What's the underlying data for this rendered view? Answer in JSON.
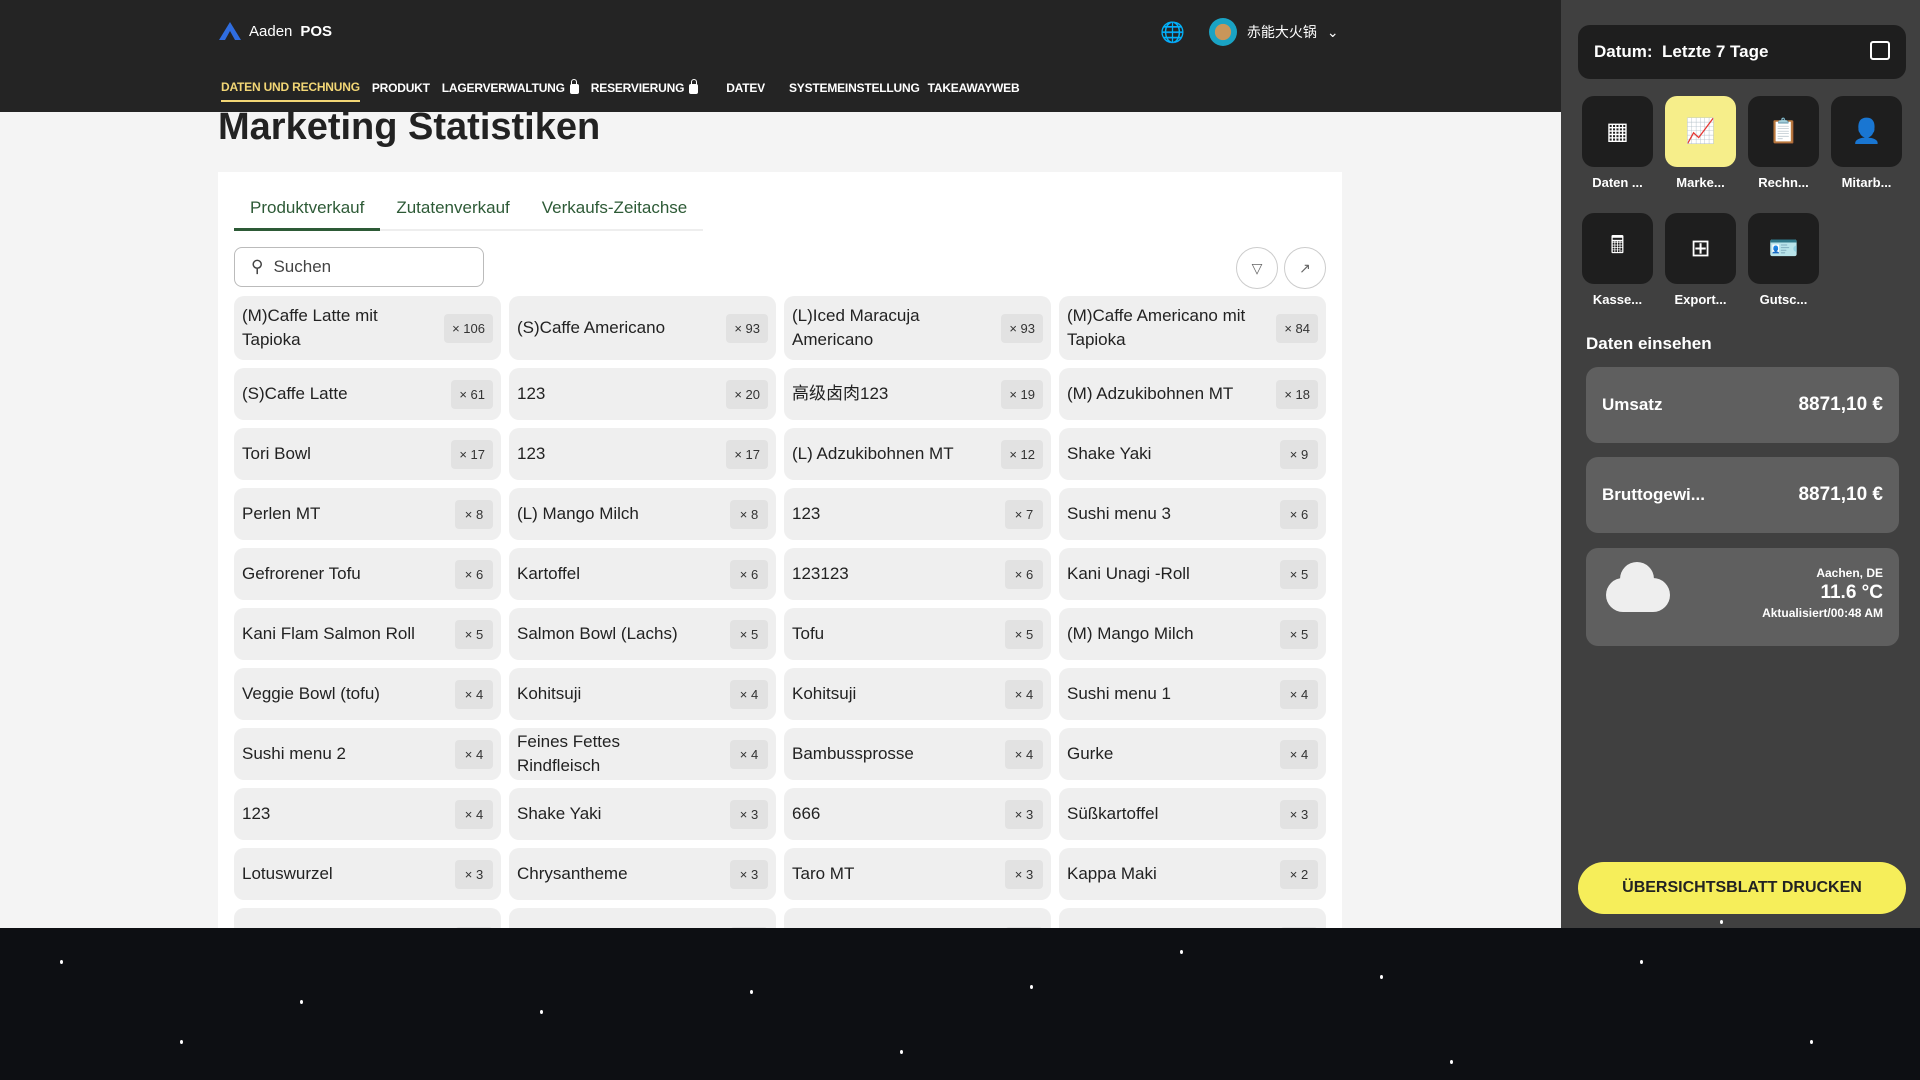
{
  "header": {
    "logo_prefix": "Aaden",
    "logo_bold": "POS",
    "user_name": "赤能大火锅",
    "nav": [
      "DATEN UND RECHNUNG",
      "PRODUKT",
      "LAGERVERWALTUNG",
      "RESERVIERUNG",
      "DATEV",
      "SYSTEMEINSTELLUNG",
      "TAKEAWAYWEB"
    ]
  },
  "page": {
    "title": "Marketing Statistiken",
    "tabs": [
      "Produktverkauf",
      "Zutatenverkauf",
      "Verkaufs-Zeitachse"
    ],
    "search_placeholder": "Suchen",
    "items": [
      [
        "(M)Caffe Latte mit Tapioka",
        "× 106"
      ],
      [
        "(S)Caffe Americano",
        "× 93"
      ],
      [
        "(L)Iced Maracuja Americano",
        "× 93"
      ],
      [
        "(M)Caffe Americano mit Tapioka",
        "× 84"
      ],
      [
        "(S)Caffe Latte",
        "× 61"
      ],
      [
        "123",
        "× 20"
      ],
      [
        "高级卤肉123",
        "× 19"
      ],
      [
        "(M) Adzukibohnen MT",
        "× 18"
      ],
      [
        "Tori Bowl",
        "× 17"
      ],
      [
        "123",
        "× 17"
      ],
      [
        "(L) Adzukibohnen MT",
        "× 12"
      ],
      [
        "Shake Yaki",
        "× 9"
      ],
      [
        "Perlen MT",
        "× 8"
      ],
      [
        "(L) Mango Milch",
        "× 8"
      ],
      [
        "123",
        "× 7"
      ],
      [
        "Sushi menu 3",
        "× 6"
      ],
      [
        "Gefrorener Tofu",
        "× 6"
      ],
      [
        "Kartoffel",
        "× 6"
      ],
      [
        "123123",
        "× 6"
      ],
      [
        "Kani Unagi -Roll",
        "× 5"
      ],
      [
        "Kani Flam Salmon Roll",
        "× 5"
      ],
      [
        "Salmon Bowl (Lachs)",
        "× 5"
      ],
      [
        "Tofu",
        "× 5"
      ],
      [
        "(M) Mango Milch",
        "× 5"
      ],
      [
        "Veggie Bowl (tofu)",
        "× 4"
      ],
      [
        "Kohitsuji",
        "× 4"
      ],
      [
        "Kohitsuji",
        "× 4"
      ],
      [
        "Sushi menu 1",
        "× 4"
      ],
      [
        "Sushi menu 2",
        "× 4"
      ],
      [
        "Feines Fettes Rindfleisch",
        "× 4"
      ],
      [
        "Bambussprosse",
        "× 4"
      ],
      [
        "Gurke",
        "× 4"
      ],
      [
        "123",
        "× 4"
      ],
      [
        "Shake Yaki",
        "× 3"
      ],
      [
        "666",
        "× 3"
      ],
      [
        "Süßkartoffel",
        "× 3"
      ],
      [
        "Lotuswurzel",
        "× 3"
      ],
      [
        "Chrysantheme",
        "× 3"
      ],
      [
        "Taro MT",
        "× 3"
      ],
      [
        "Kappa Maki",
        "× 2"
      ],
      [
        "",
        ""
      ],
      [
        "",
        ""
      ],
      [
        "",
        ""
      ],
      [
        "",
        ""
      ]
    ]
  },
  "side": {
    "datum_label": "Datum:",
    "datum_value": "Letzte 7 Tage",
    "tiles": [
      {
        "label": "Daten ...",
        "icon": "dashboard-icon",
        "glyph": "▦"
      },
      {
        "label": "Marke...",
        "icon": "chart-line-icon",
        "glyph": "📈",
        "active": true
      },
      {
        "label": "Rechn...",
        "icon": "clipboard-icon",
        "glyph": "📋"
      },
      {
        "label": "Mitarb...",
        "icon": "employee-icon",
        "glyph": "👤"
      },
      {
        "label": "Kasse...",
        "icon": "cash-register-icon",
        "glyph": "🖩"
      },
      {
        "label": "Export...",
        "icon": "export-table-icon",
        "glyph": "⊞"
      },
      {
        "label": "Gutsc...",
        "icon": "voucher-card-icon",
        "glyph": "🪪"
      }
    ],
    "section_title": "Daten einsehen",
    "stats": [
      {
        "label": "Umsatz",
        "value": "8871,10 €"
      },
      {
        "label": "Bruttogewi...",
        "value": "8871,10 €"
      }
    ],
    "weather": {
      "location": "Aachen, DE",
      "temp": "11.6 °C",
      "updated": "Aktualisiert/00:48 AM",
      "icon": "cloud-icon"
    },
    "print_label": "ÜBERSICHTSBLATT DRUCKEN"
  },
  "colors": {
    "accent_yellow": "#f6ee5a",
    "nav_active": "#f2d675",
    "tab_green": "#2d5a36"
  }
}
